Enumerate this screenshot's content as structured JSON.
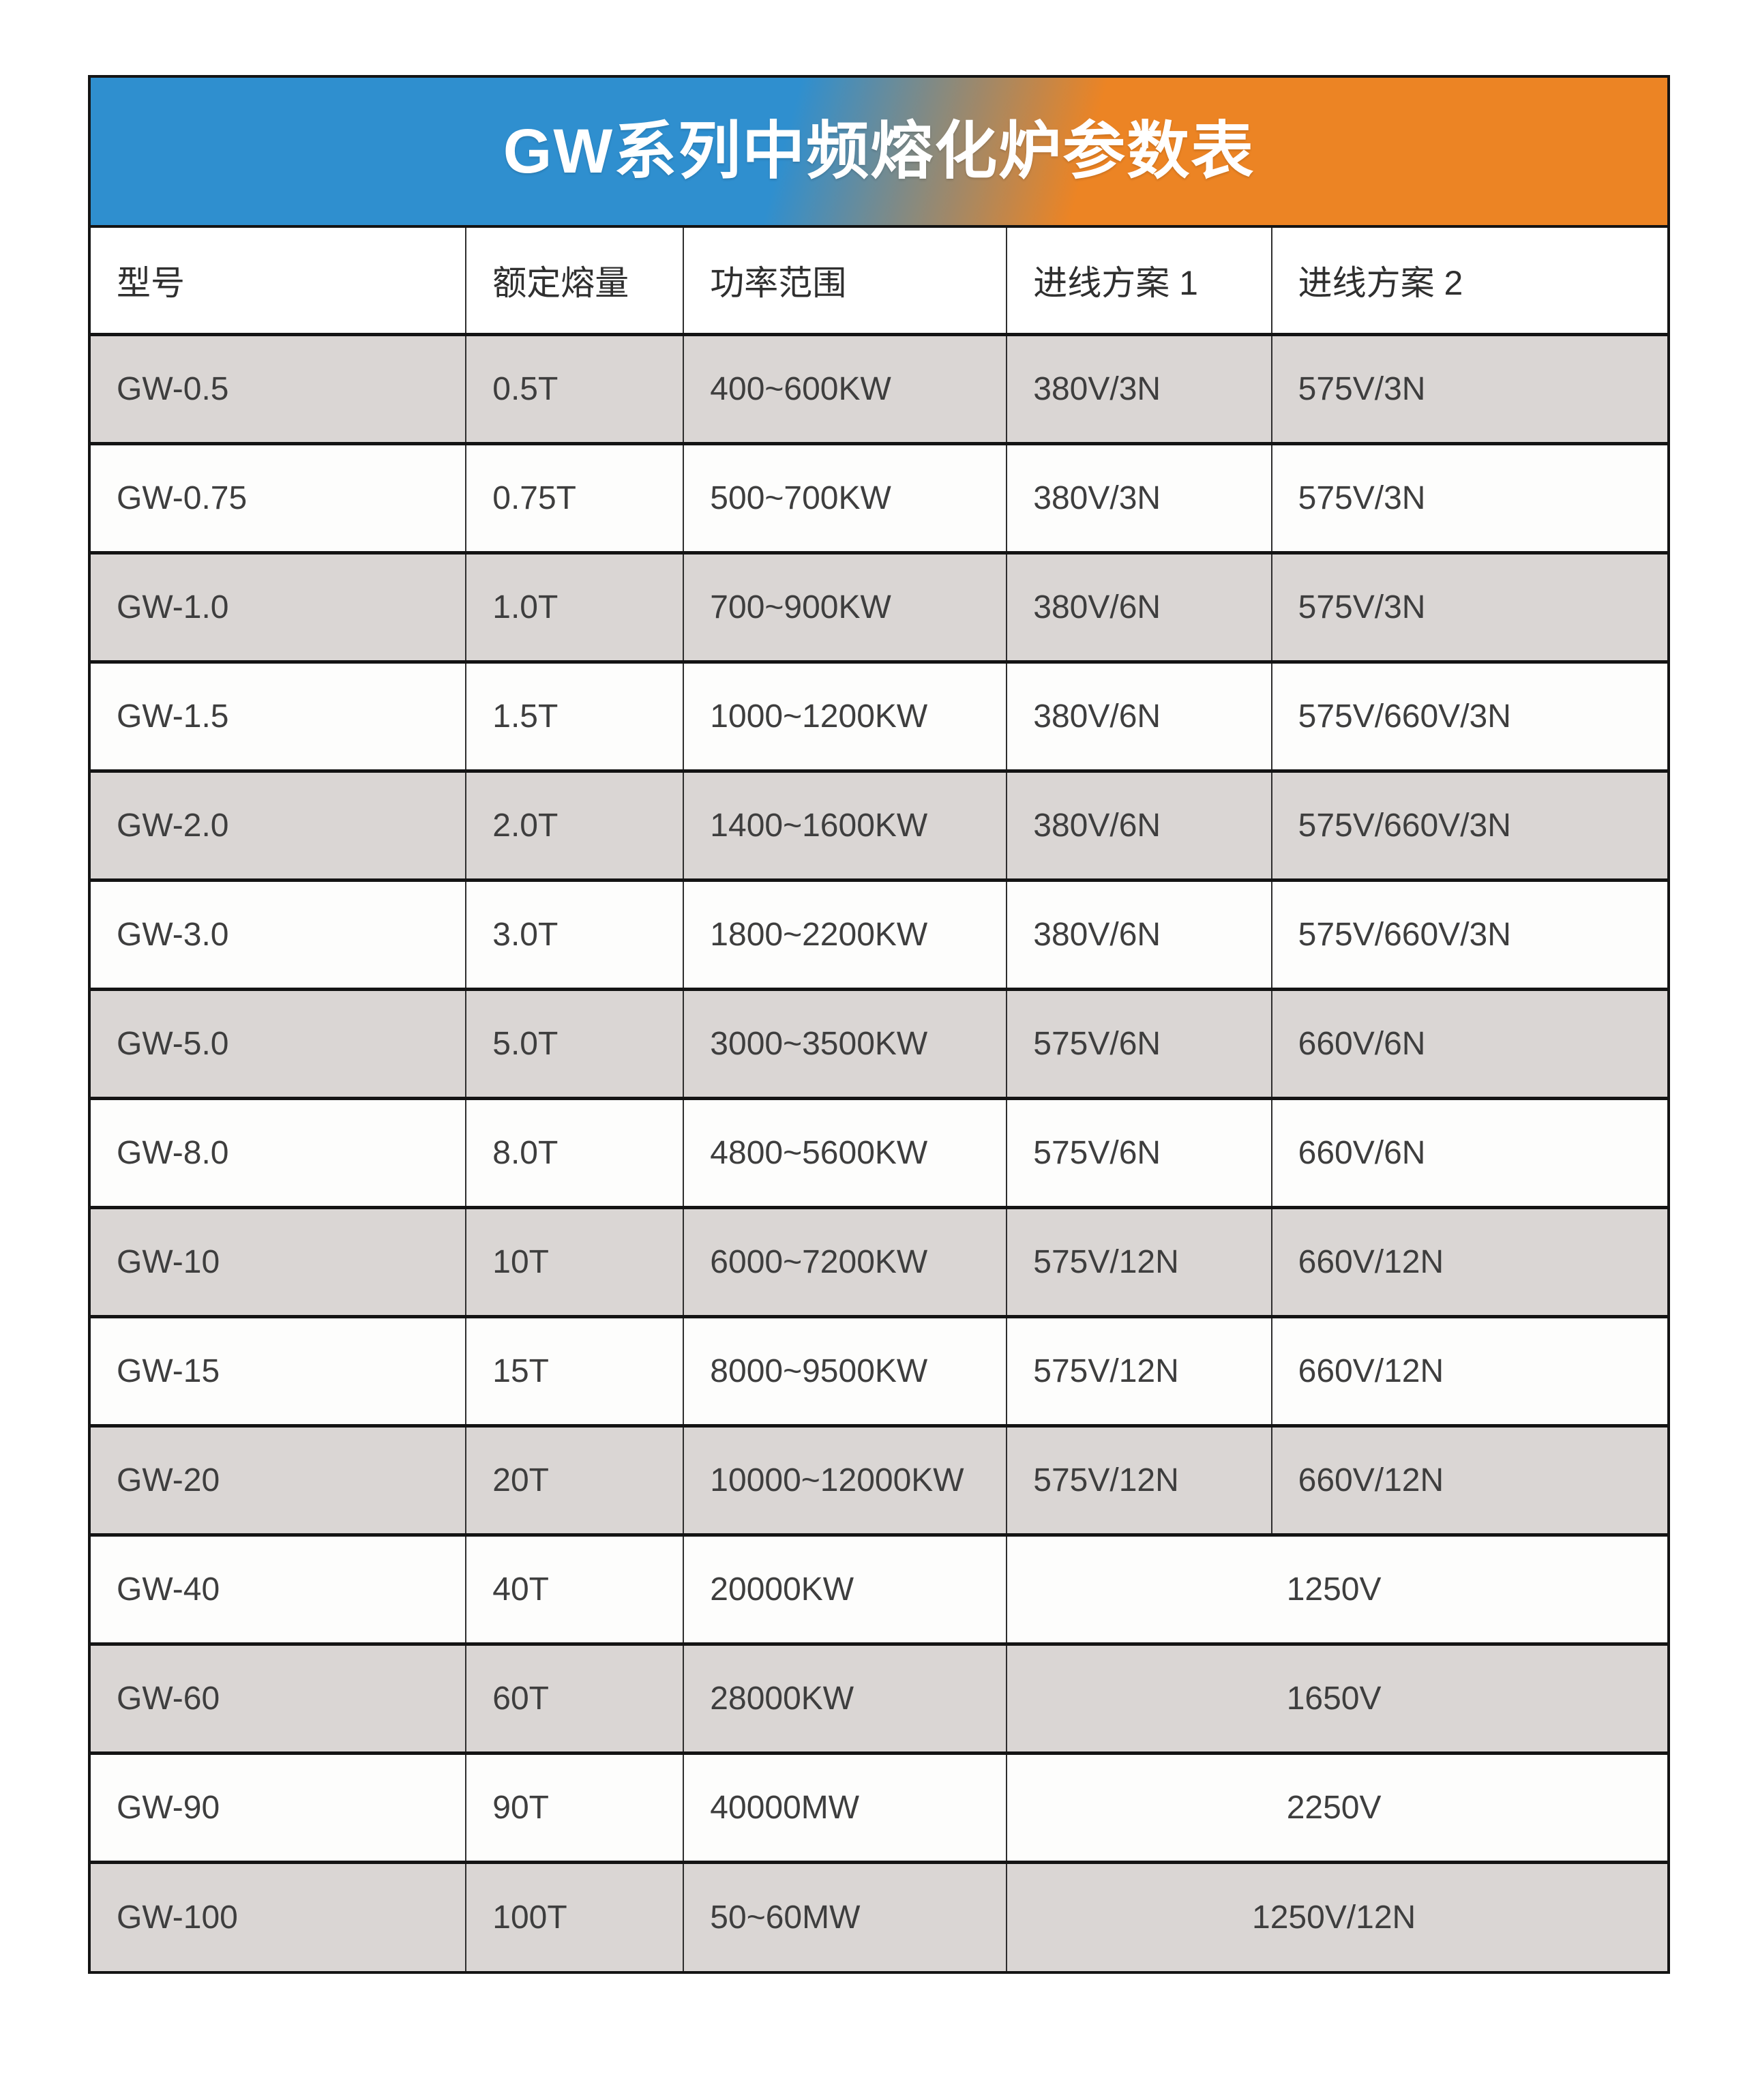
{
  "title": "GW系列中频熔化炉参数表",
  "colors": {
    "band_blue": "#2F8FCF",
    "band_orange": "#EC8424",
    "stripe_gray": "#DAD6D4",
    "stripe_white": "#FDFDFC",
    "border_dark": "#141414",
    "text_dark": "#3E3E3E"
  },
  "table": {
    "columns": [
      "型号",
      "额定熔量",
      "功率范围",
      "进线方案 1",
      "进线方案 2"
    ],
    "rows": [
      {
        "model": "GW-0.5",
        "capacity": "0.5T",
        "power": "400~600KW",
        "line1": "380V/3N",
        "line2": "575V/3N"
      },
      {
        "model": "GW-0.75",
        "capacity": "0.75T",
        "power": "500~700KW",
        "line1": "380V/3N",
        "line2": "575V/3N"
      },
      {
        "model": "GW-1.0",
        "capacity": "1.0T",
        "power": "700~900KW",
        "line1": "380V/6N",
        "line2": "575V/3N"
      },
      {
        "model": "GW-1.5",
        "capacity": "1.5T",
        "power": "1000~1200KW",
        "line1": "380V/6N",
        "line2": "575V/660V/3N"
      },
      {
        "model": "GW-2.0",
        "capacity": "2.0T",
        "power": "1400~1600KW",
        "line1": "380V/6N",
        "line2": "575V/660V/3N"
      },
      {
        "model": "GW-3.0",
        "capacity": "3.0T",
        "power": "1800~2200KW",
        "line1": "380V/6N",
        "line2": "575V/660V/3N"
      },
      {
        "model": "GW-5.0",
        "capacity": "5.0T",
        "power": "3000~3500KW",
        "line1": "575V/6N",
        "line2": "660V/6N"
      },
      {
        "model": "GW-8.0",
        "capacity": "8.0T",
        "power": "4800~5600KW",
        "line1": "575V/6N",
        "line2": "660V/6N"
      },
      {
        "model": "GW-10",
        "capacity": "10T",
        "power": "6000~7200KW",
        "line1": "575V/12N",
        "line2": "660V/12N"
      },
      {
        "model": "GW-15",
        "capacity": "15T",
        "power": "8000~9500KW",
        "line1": "575V/12N",
        "line2": "660V/12N"
      },
      {
        "model": "GW-20",
        "capacity": "20T",
        "power": "10000~12000KW",
        "line1": "575V/12N",
        "line2": "660V/12N"
      },
      {
        "model": "GW-40",
        "capacity": "40T",
        "power": "20000KW",
        "merged": "1250V"
      },
      {
        "model": "GW-60",
        "capacity": "60T",
        "power": "28000KW",
        "merged": "1650V"
      },
      {
        "model": "GW-90",
        "capacity": "90T",
        "power": "40000MW",
        "merged": "2250V"
      },
      {
        "model": "GW-100",
        "capacity": "100T",
        "power": "50~60MW",
        "merged": "1250V/12N"
      }
    ]
  }
}
